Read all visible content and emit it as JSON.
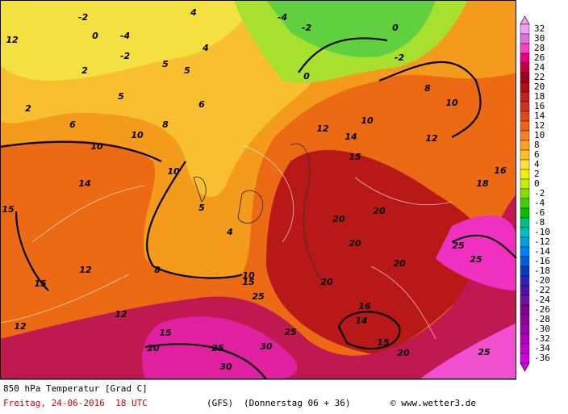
{
  "map": {
    "contour_labels": [
      "0",
      "-2",
      "-4",
      "-2",
      "0",
      "-2",
      "-4",
      "-2",
      "0",
      "2",
      "4",
      "4",
      "5",
      "5",
      "5",
      "6",
      "6",
      "8",
      "8",
      "10",
      "10",
      "10",
      "10",
      "10",
      "12",
      "12",
      "14",
      "14",
      "15",
      "15",
      "15",
      "16",
      "12",
      "12",
      "12",
      "8",
      "5",
      "4",
      "20",
      "20",
      "20",
      "20",
      "20",
      "20",
      "20",
      "25",
      "25",
      "25",
      "25",
      "25",
      "25",
      "30",
      "30",
      "15",
      "15",
      "15",
      "10",
      "16",
      "14",
      "18",
      "12",
      "2"
    ]
  },
  "legend": {
    "labels": [
      32,
      30,
      28,
      26,
      24,
      22,
      20,
      18,
      16,
      14,
      12,
      10,
      8,
      6,
      4,
      2,
      0,
      -2,
      -4,
      -6,
      -8,
      -10,
      -12,
      -14,
      -16,
      -18,
      -20,
      -22,
      -24,
      -26,
      -28,
      -30,
      -32,
      -34,
      -36
    ],
    "colors": [
      "#f0a0f0",
      "#e070e0",
      "#ff40c0",
      "#e80080",
      "#c00040",
      "#a00020",
      "#b01010",
      "#c02020",
      "#d03020",
      "#e04818",
      "#f06018",
      "#f88020",
      "#ffa020",
      "#ffc020",
      "#ffe040",
      "#f0f000",
      "#c0f000",
      "#80e000",
      "#40d000",
      "#00c000",
      "#00c080",
      "#00c0c0",
      "#00a0e0",
      "#0080ff",
      "#0060e0",
      "#0040c0",
      "#3020c0",
      "#5010b0",
      "#7010a0",
      "#800090",
      "#9000a0",
      "#a000b0",
      "#b000c0",
      "#c000d0",
      "#d000e0"
    ]
  },
  "footer": {
    "title": "850 hPa Temperatur [Grad C]",
    "date": "Freitag, 24-06-2016  18 UTC",
    "model": "(GFS)",
    "run": "(Donnerstag 06 + 36)",
    "credit": "© www.wetter3.de"
  }
}
